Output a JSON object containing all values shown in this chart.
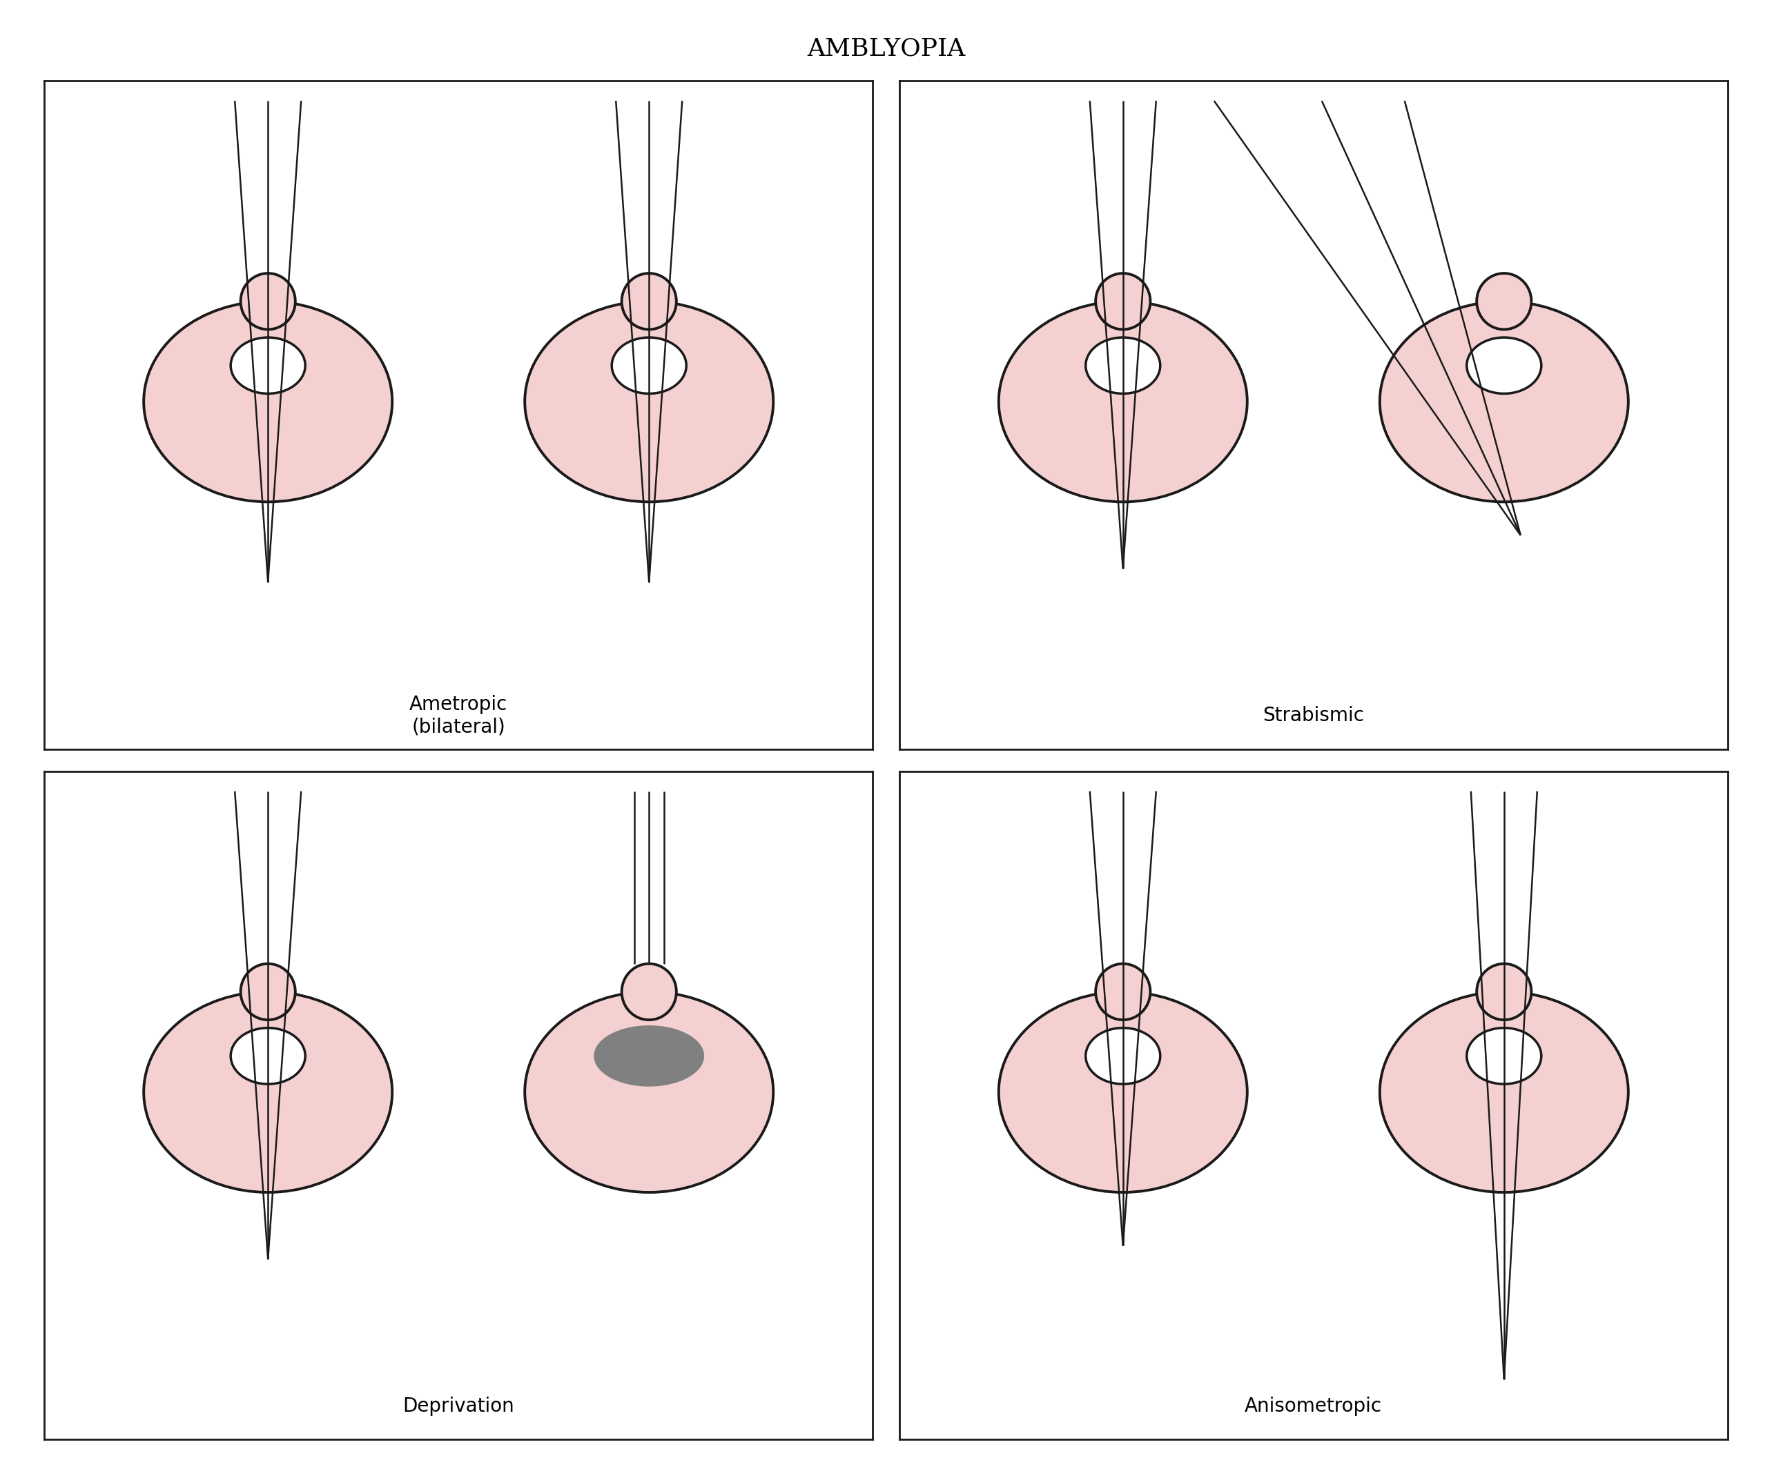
{
  "title": "AMBLYOPIA",
  "title_fontsize": 26,
  "title_fontweight": "normal",
  "title_family": "serif",
  "panels": [
    {
      "label": "Ametropic\n(bilateral)",
      "type": "ametropic"
    },
    {
      "label": "Strabismic",
      "type": "strabismic"
    },
    {
      "label": "Deprivation",
      "type": "deprivation"
    },
    {
      "label": "Anisometropic",
      "type": "anisometropic"
    }
  ],
  "eye_color": "#f5d0d0",
  "eye_outline": "#1a1a1a",
  "cornea_color": "#ffffff",
  "cataract_color": "#808080",
  "line_color": "#1a1a1a",
  "lw_eye": 2.8,
  "lw_ray": 1.8,
  "label_fontsize": 20,
  "background": "#ffffff",
  "panel_bg": "#ffffff",
  "panel_lw": 2.0
}
